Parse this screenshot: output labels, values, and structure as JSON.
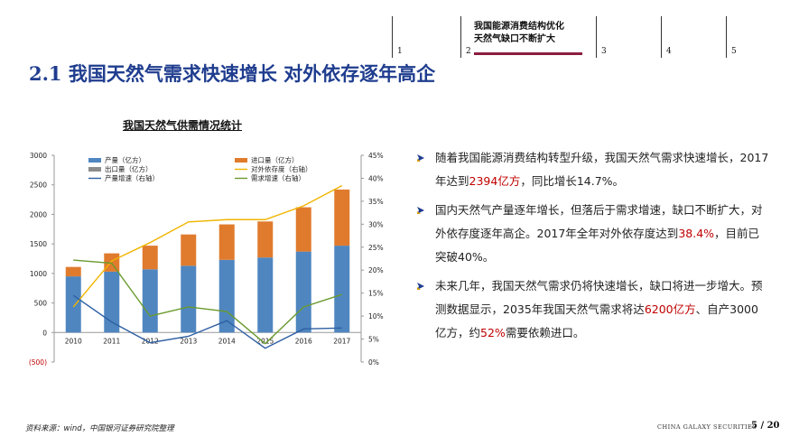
{
  "nav": {
    "items": [
      {
        "num": "1"
      },
      {
        "num": "2",
        "active": true,
        "text_line1": "我国能源消费结构优化",
        "text_line2": "天然气缺口不断扩大"
      },
      {
        "num": "3"
      },
      {
        "num": "4"
      },
      {
        "num": "5"
      }
    ],
    "accent_color": "#8b1e3f"
  },
  "title": "2.1 我国天然气需求快速增长 对外依存逐年高企",
  "chart_title": "我国天然气供需情况统计",
  "chart_data": {
    "type": "bar",
    "categories": [
      "2010",
      "2011",
      "2012",
      "2013",
      "2014",
      "2015",
      "2016",
      "2017"
    ],
    "left_axis": {
      "min": -500,
      "max": 3000,
      "ticks": [
        "(500)",
        "0",
        "500",
        "1000",
        "1500",
        "2000",
        "2500",
        "3000"
      ]
    },
    "right_axis": {
      "min": 0,
      "max": 0.45,
      "ticks": [
        "0%",
        "5%",
        "10%",
        "15%",
        "20%",
        "25%",
        "30%",
        "35%",
        "40%",
        "45%"
      ]
    },
    "bar_series": [
      {
        "name": "产量（亿方）",
        "color": "#4f86c0",
        "values": [
          950,
          1030,
          1070,
          1130,
          1230,
          1270,
          1370,
          1470
        ]
      },
      {
        "name": "进口量（亿方）",
        "color": "#e07b2d",
        "values": [
          160,
          310,
          400,
          530,
          600,
          610,
          750,
          950
        ]
      },
      {
        "name": "出口量（亿方）",
        "color": "#8c8c8c",
        "values": [
          0,
          0,
          0,
          0,
          0,
          0,
          0,
          0
        ]
      }
    ],
    "line_series": [
      {
        "name": "对外依存度（右轴）",
        "color": "#f0b400",
        "axis": "right",
        "values": [
          0.12,
          0.22,
          0.26,
          0.305,
          0.31,
          0.31,
          0.34,
          0.384
        ]
      },
      {
        "name": "产量增速（右轴）",
        "color": "#2e5fa3",
        "axis": "right",
        "values": [
          0.145,
          0.087,
          0.042,
          0.056,
          0.09,
          0.03,
          0.072,
          0.074
        ]
      },
      {
        "name": "需求增速（右轴）",
        "color": "#6a9a2e",
        "axis": "right",
        "values": [
          0.222,
          0.215,
          0.1,
          0.12,
          0.11,
          0.04,
          0.12,
          0.147
        ]
      }
    ],
    "legend_position": "top"
  },
  "bullets": [
    {
      "segments": [
        {
          "text": "随着我国能源消费结构转型升级，我国天然气需求快速增长，2017年达到"
        },
        {
          "text": "2394亿方",
          "red": true
        },
        {
          "text": "，同比增长14.7%。"
        }
      ]
    },
    {
      "segments": [
        {
          "text": "国内天然气产量逐年增长，但落后于需求增速，缺口不断扩大，对外依存度逐年高企。2017年全年对外依存度达到"
        },
        {
          "text": "38.4%",
          "red": true
        },
        {
          "text": "，目前已突破40%。"
        }
      ]
    },
    {
      "segments": [
        {
          "text": "未来几年，我国天然气需求仍将快速增长，缺口将进一步增大。预测数据显示，2035年我国天然气需求将达"
        },
        {
          "text": "6200亿方",
          "red": true
        },
        {
          "text": "、自产3000亿方，约"
        },
        {
          "text": "52%",
          "red": true
        },
        {
          "text": "需要依赖进口。"
        }
      ]
    }
  ],
  "footer": {
    "source": "资料来源：wind，中国银河证券研究院整理",
    "brand": "CHINA GALAXY SECURITIES",
    "page": "5 / 20"
  }
}
